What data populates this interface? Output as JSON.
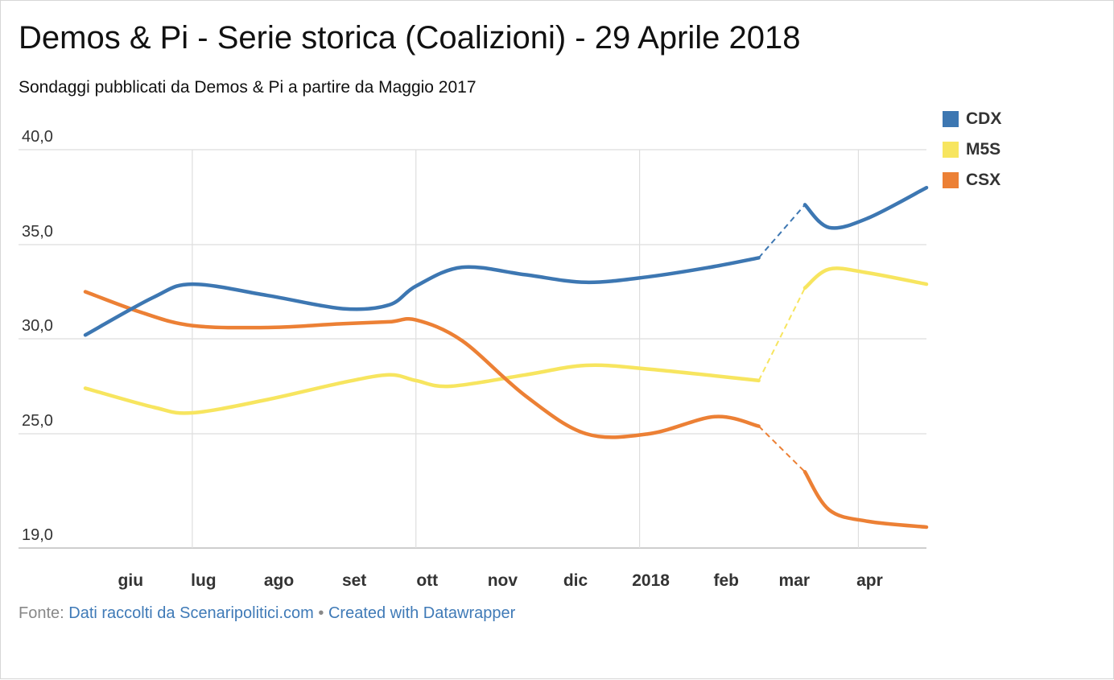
{
  "title": "Demos & Pi - Serie storica (Coalizioni) - 29 Aprile 2018",
  "subtitle": "Sondaggi pubblicati da Demos & Pi a partire da Maggio 2017",
  "footer": {
    "source_label": "Fonte:",
    "source_link": "Dati raccolti da Scenaripolitici.com",
    "separator": "•",
    "credit_link": "Created with Datawrapper"
  },
  "chart_data": {
    "type": "line",
    "title": "Demos & Pi - Serie storica (Coalizioni) - 29 Aprile 2018",
    "subtitle": "Sondaggi pubblicati da Demos & Pi a partire da Maggio 2017",
    "xlabel": "",
    "ylabel": "",
    "x_range": [
      "2017-05-18",
      "2018-04-29"
    ],
    "ylim": [
      19,
      40
    ],
    "y_ticks": [
      19,
      25,
      30,
      35,
      40
    ],
    "y_tick_labels": [
      "19,0",
      "25,0",
      "30,0",
      "35,0",
      "40,0"
    ],
    "x_ticks": [
      {
        "label": "giu",
        "date": "2017-06-01"
      },
      {
        "label": "lug",
        "date": "2017-07-01"
      },
      {
        "label": "ago",
        "date": "2017-08-01"
      },
      {
        "label": "set",
        "date": "2017-09-01"
      },
      {
        "label": "ott",
        "date": "2017-10-01"
      },
      {
        "label": "nov",
        "date": "2017-11-01"
      },
      {
        "label": "dic",
        "date": "2017-12-01"
      },
      {
        "label": "2018",
        "date": "2018-01-01"
      },
      {
        "label": "feb",
        "date": "2018-02-01"
      },
      {
        "label": "mar",
        "date": "2018-03-01"
      },
      {
        "label": "apr",
        "date": "2018-04-01"
      }
    ],
    "grid": true,
    "legend_position": "top-right",
    "gap": {
      "from": "2018-02-19",
      "to": "2018-03-10",
      "style": "dashed"
    },
    "series": [
      {
        "name": "CDX",
        "color": "#3d77b2",
        "points": [
          {
            "x": "2017-05-18",
            "y": 30.2
          },
          {
            "x": "2017-06-15",
            "y": 32.2
          },
          {
            "x": "2017-07-01",
            "y": 32.9
          },
          {
            "x": "2017-08-01",
            "y": 32.3
          },
          {
            "x": "2017-09-01",
            "y": 31.6
          },
          {
            "x": "2017-09-20",
            "y": 31.8
          },
          {
            "x": "2017-10-01",
            "y": 32.8
          },
          {
            "x": "2017-10-20",
            "y": 33.8
          },
          {
            "x": "2017-11-15",
            "y": 33.4
          },
          {
            "x": "2017-12-10",
            "y": 33.0
          },
          {
            "x": "2018-01-05",
            "y": 33.3
          },
          {
            "x": "2018-01-30",
            "y": 33.8
          },
          {
            "x": "2018-02-19",
            "y": 34.3
          },
          {
            "x": "2018-03-10",
            "y": 37.1
          },
          {
            "x": "2018-03-20",
            "y": 35.9
          },
          {
            "x": "2018-04-05",
            "y": 36.4
          },
          {
            "x": "2018-04-29",
            "y": 38.0
          }
        ]
      },
      {
        "name": "M5S",
        "color": "#f7e55f",
        "points": [
          {
            "x": "2017-05-18",
            "y": 27.4
          },
          {
            "x": "2017-06-15",
            "y": 26.4
          },
          {
            "x": "2017-07-01",
            "y": 26.1
          },
          {
            "x": "2017-08-01",
            "y": 26.8
          },
          {
            "x": "2017-09-01",
            "y": 27.7
          },
          {
            "x": "2017-09-20",
            "y": 28.1
          },
          {
            "x": "2017-10-01",
            "y": 27.8
          },
          {
            "x": "2017-10-15",
            "y": 27.5
          },
          {
            "x": "2017-11-15",
            "y": 28.1
          },
          {
            "x": "2017-12-10",
            "y": 28.6
          },
          {
            "x": "2018-01-05",
            "y": 28.4
          },
          {
            "x": "2018-02-19",
            "y": 27.8
          },
          {
            "x": "2018-03-10",
            "y": 32.7
          },
          {
            "x": "2018-03-20",
            "y": 33.7
          },
          {
            "x": "2018-04-05",
            "y": 33.5
          },
          {
            "x": "2018-04-29",
            "y": 32.9
          }
        ]
      },
      {
        "name": "CSX",
        "color": "#ec8035",
        "points": [
          {
            "x": "2017-05-18",
            "y": 32.5
          },
          {
            "x": "2017-06-10",
            "y": 31.4
          },
          {
            "x": "2017-07-01",
            "y": 30.7
          },
          {
            "x": "2017-08-01",
            "y": 30.6
          },
          {
            "x": "2017-09-01",
            "y": 30.8
          },
          {
            "x": "2017-09-20",
            "y": 30.9
          },
          {
            "x": "2017-10-01",
            "y": 31.0
          },
          {
            "x": "2017-10-20",
            "y": 29.9
          },
          {
            "x": "2017-11-15",
            "y": 27.0
          },
          {
            "x": "2017-12-10",
            "y": 25.0
          },
          {
            "x": "2018-01-05",
            "y": 25.0
          },
          {
            "x": "2018-02-01",
            "y": 25.9
          },
          {
            "x": "2018-02-19",
            "y": 25.4
          },
          {
            "x": "2018-03-10",
            "y": 23.0
          },
          {
            "x": "2018-03-20",
            "y": 21.0
          },
          {
            "x": "2018-04-05",
            "y": 20.4
          },
          {
            "x": "2018-04-29",
            "y": 20.1
          }
        ]
      }
    ]
  }
}
